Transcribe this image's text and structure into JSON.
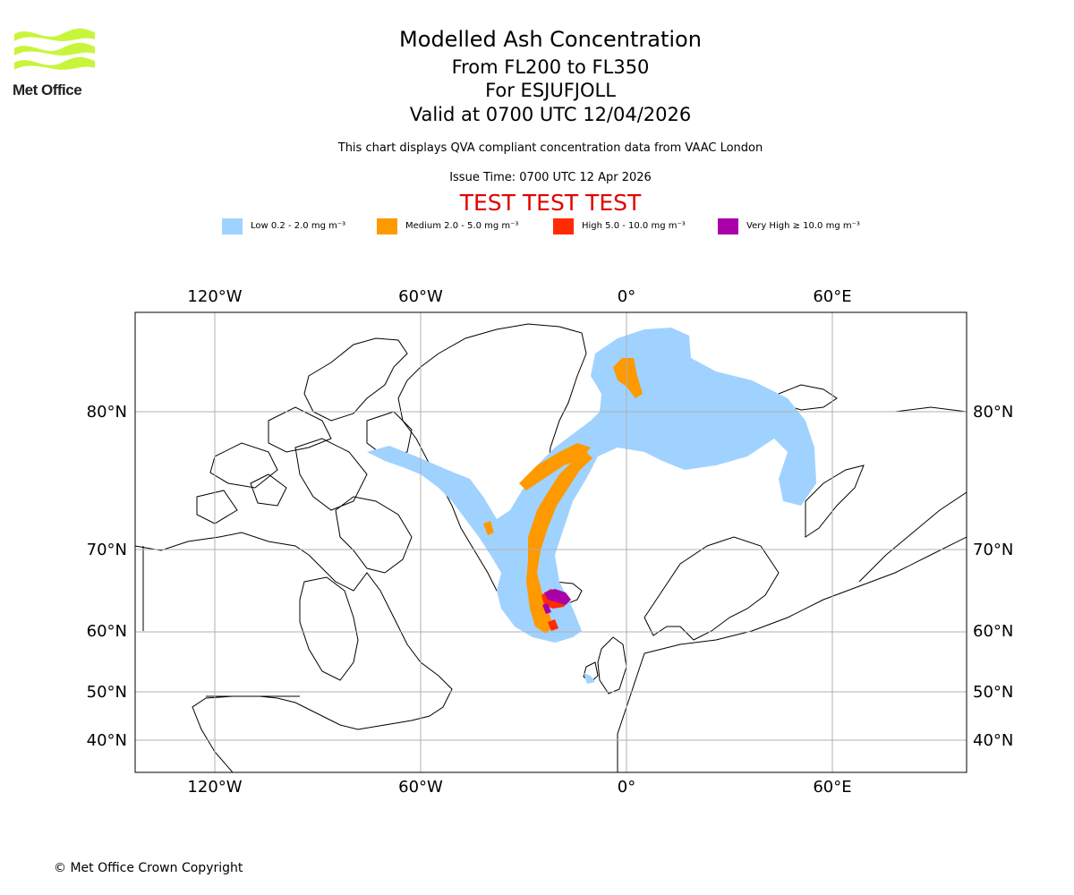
{
  "logo": {
    "text": "Met Office",
    "color": "#c8f53c"
  },
  "title": {
    "main": "Modelled Ash Concentration",
    "levels": "From FL200 to FL350",
    "volcano": "For ESJUFJOLL",
    "valid": "Valid at 0700 UTC 12/04/2026"
  },
  "note": "This chart displays QVA compliant concentration data from VAAC London",
  "issue_time": "Issue Time: 0700 UTC 12 Apr 2026",
  "test_banner": "TEST TEST TEST",
  "legend": [
    {
      "label": "Low 0.2 - 2.0 mg m⁻³",
      "color": "#a0d2ff"
    },
    {
      "label": "Medium 2.0 - 5.0 mg m⁻³",
      "color": "#ff9900"
    },
    {
      "label": "High 5.0 - 10.0 mg m⁻³",
      "color": "#ff2a00"
    },
    {
      "label": "Very High ≥ 10.0 mg m⁻³",
      "color": "#aa00aa"
    }
  ],
  "map": {
    "lon_labels": [
      "120°W",
      "60°W",
      "0°",
      "60°E"
    ],
    "lat_labels": [
      "80°N",
      "70°N",
      "60°N",
      "50°N",
      "40°N"
    ],
    "gridlines": true
  },
  "copyright": "© Met Office Crown Copyright"
}
